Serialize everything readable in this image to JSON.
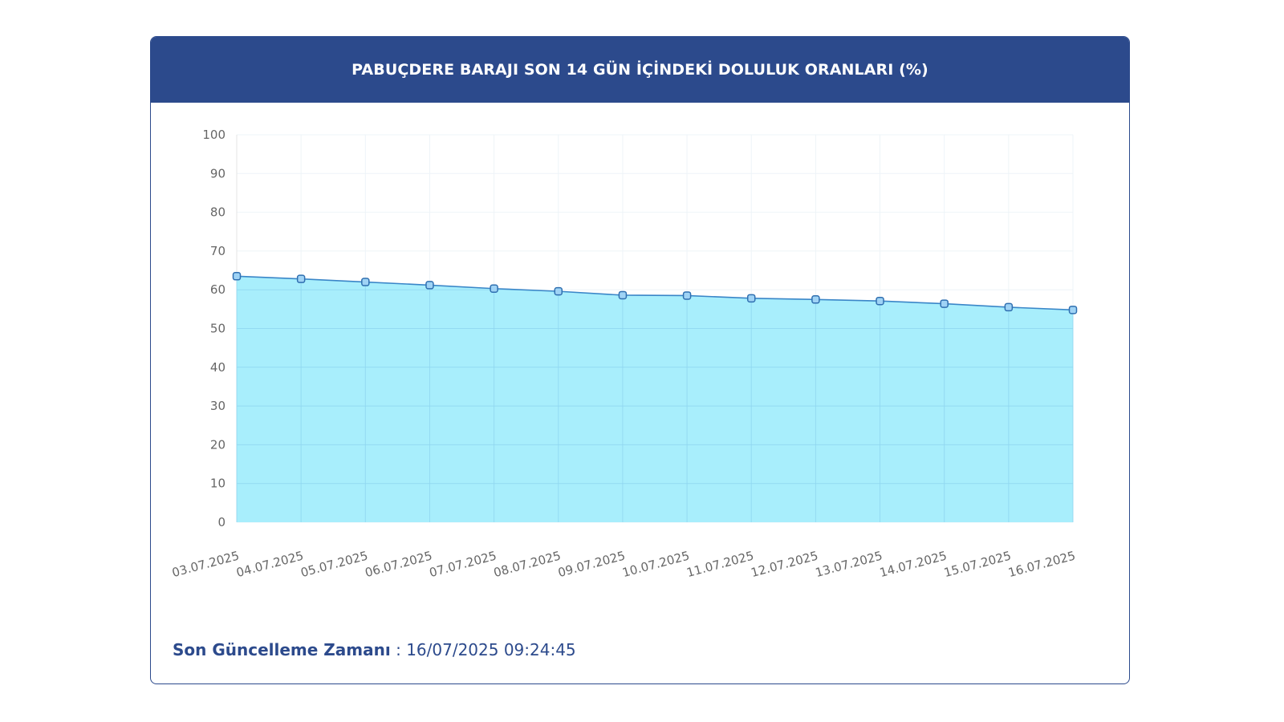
{
  "header": {
    "title": "PABUÇDERE BARAJI SON 14 GÜN İÇİNDEKİ DOLULUK ORANLARI (%)"
  },
  "footer": {
    "label": "Son Güncelleme Zamanı",
    "separator": " : ",
    "value": "16/07/2025 09:24:45"
  },
  "colors": {
    "header_bg": "#2c4a8c",
    "area_fill": "#a8eefc",
    "line": "#3a86c8",
    "point_fill": "#9fd3f5",
    "point_stroke": "#2f6fb0",
    "grid": "#d9eef8",
    "tick_text": "#666666"
  },
  "chart_data": {
    "type": "area",
    "title": "PABUÇDERE BARAJI SON 14 GÜN İÇİNDEKİ DOLULUK ORANLARI (%)",
    "xlabel": "",
    "ylabel": "",
    "ylim": [
      0,
      100
    ],
    "yticks": [
      0,
      10,
      20,
      30,
      40,
      50,
      60,
      70,
      80,
      90,
      100
    ],
    "grid": true,
    "legend": "none",
    "categories": [
      "03.07.2025",
      "04.07.2025",
      "05.07.2025",
      "06.07.2025",
      "07.07.2025",
      "08.07.2025",
      "09.07.2025",
      "10.07.2025",
      "11.07.2025",
      "12.07.2025",
      "13.07.2025",
      "14.07.2025",
      "15.07.2025",
      "16.07.2025"
    ],
    "series": [
      {
        "values": [
          63.5,
          62.8,
          62.0,
          61.2,
          60.3,
          59.6,
          58.6,
          58.5,
          57.8,
          57.5,
          57.1,
          56.4,
          55.5,
          54.8
        ]
      }
    ]
  }
}
